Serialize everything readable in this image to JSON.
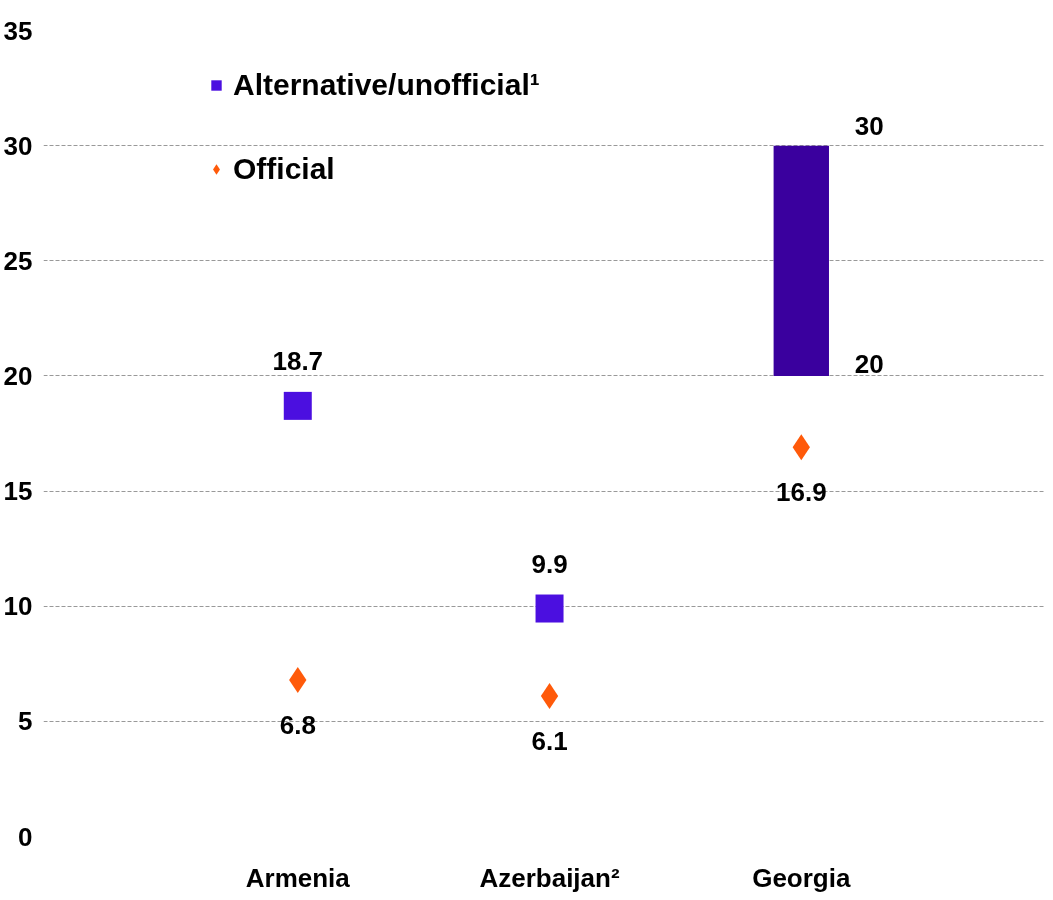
{
  "chart_data": {
    "type": "scatter",
    "categories": [
      "Armenia",
      "Azerbaijan²",
      "Georgia"
    ],
    "series": [
      {
        "name": "Alternative/unofficial¹",
        "marker": "square",
        "color": "#4b0fe0",
        "values": [
          18.7,
          9.9,
          null
        ],
        "value_labels": [
          "18.7",
          "9.9",
          null
        ]
      },
      {
        "type": "bar",
        "color": "#3a009e",
        "base": [
          null,
          null,
          20
        ],
        "values": [
          null,
          null,
          10
        ]
      },
      {
        "name": "Official",
        "marker": "diamond",
        "color": "#ff5a0a",
        "values": [
          6.8,
          6.1,
          16.9
        ],
        "value_labels": [
          "6.8",
          "6.1",
          "16.9"
        ]
      }
    ],
    "annotations": [
      {
        "text": "30",
        "x": "Georgia",
        "y": 30
      },
      {
        "text": "20",
        "x": "Georgia",
        "y": 20
      }
    ],
    "ylim": [
      0,
      35
    ],
    "yticks": [
      0,
      5,
      10,
      15,
      20,
      25,
      30,
      35
    ],
    "grid": "y",
    "legend": "top left"
  }
}
